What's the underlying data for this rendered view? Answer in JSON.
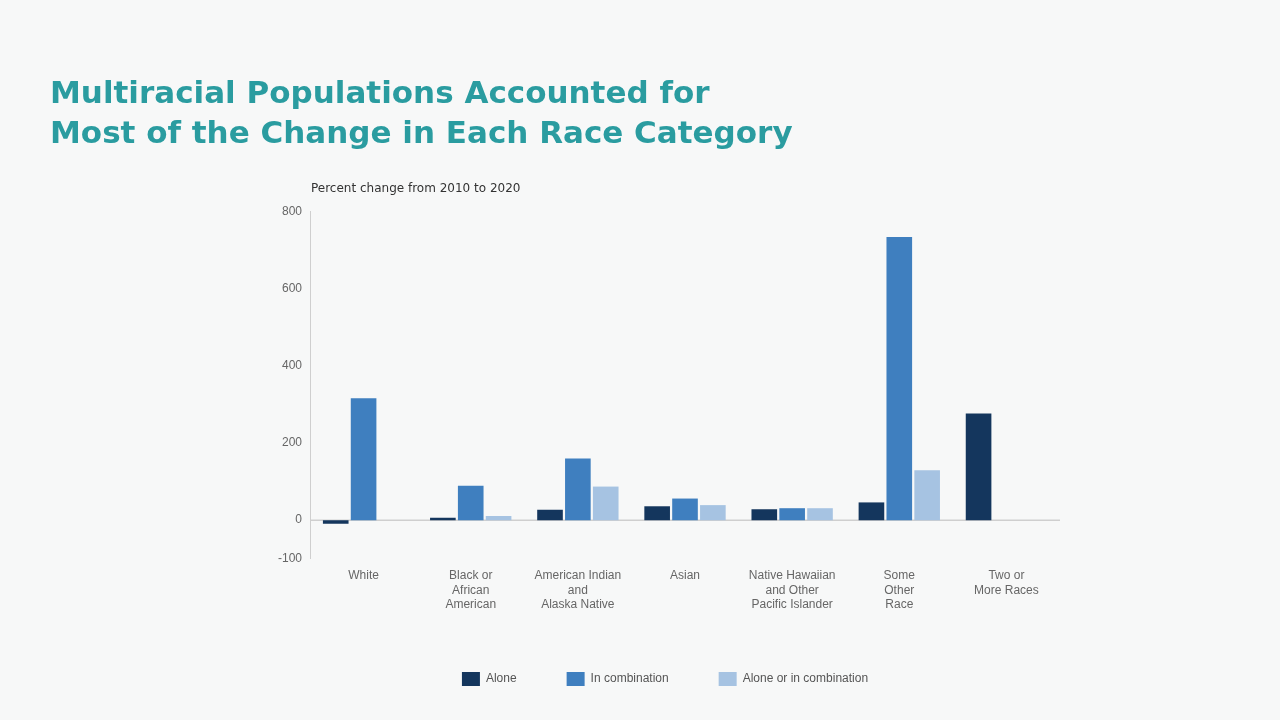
{
  "chart_data": {
    "type": "bar",
    "title": "Multiracial Populations Accounted for\nMost of the Change in Each Race Category",
    "ylabel": "Percent change from 2010 to 2020",
    "categories": [
      "White",
      "Black or\nAfrican\nAmerican",
      "American Indian\nand\nAlaska Native",
      "Asian",
      "Native Hawaiian\nand Other\nPacific Islander",
      "Some\nOther\nRace",
      "Two or\nMore Races"
    ],
    "series": [
      {
        "name": "Alone",
        "color": "#14365d",
        "values": [
          -9,
          6,
          27,
          36,
          28,
          46,
          276
        ]
      },
      {
        "name": "In combination",
        "color": "#3f7fbf",
        "values": [
          316,
          89,
          160,
          56,
          31,
          733,
          null
        ]
      },
      {
        "name": "Alone or in combination",
        "color": "#a6c3e2",
        "values": [
          null,
          11,
          87,
          39,
          31,
          129,
          null
        ]
      }
    ],
    "ylim": [
      -100,
      800
    ],
    "yticks": [
      -100,
      0,
      200,
      400,
      600,
      800
    ],
    "ref_lines": [
      {
        "axis": "y",
        "value": 0,
        "color": "#cfcfcf"
      }
    ],
    "legend": "bottom"
  }
}
